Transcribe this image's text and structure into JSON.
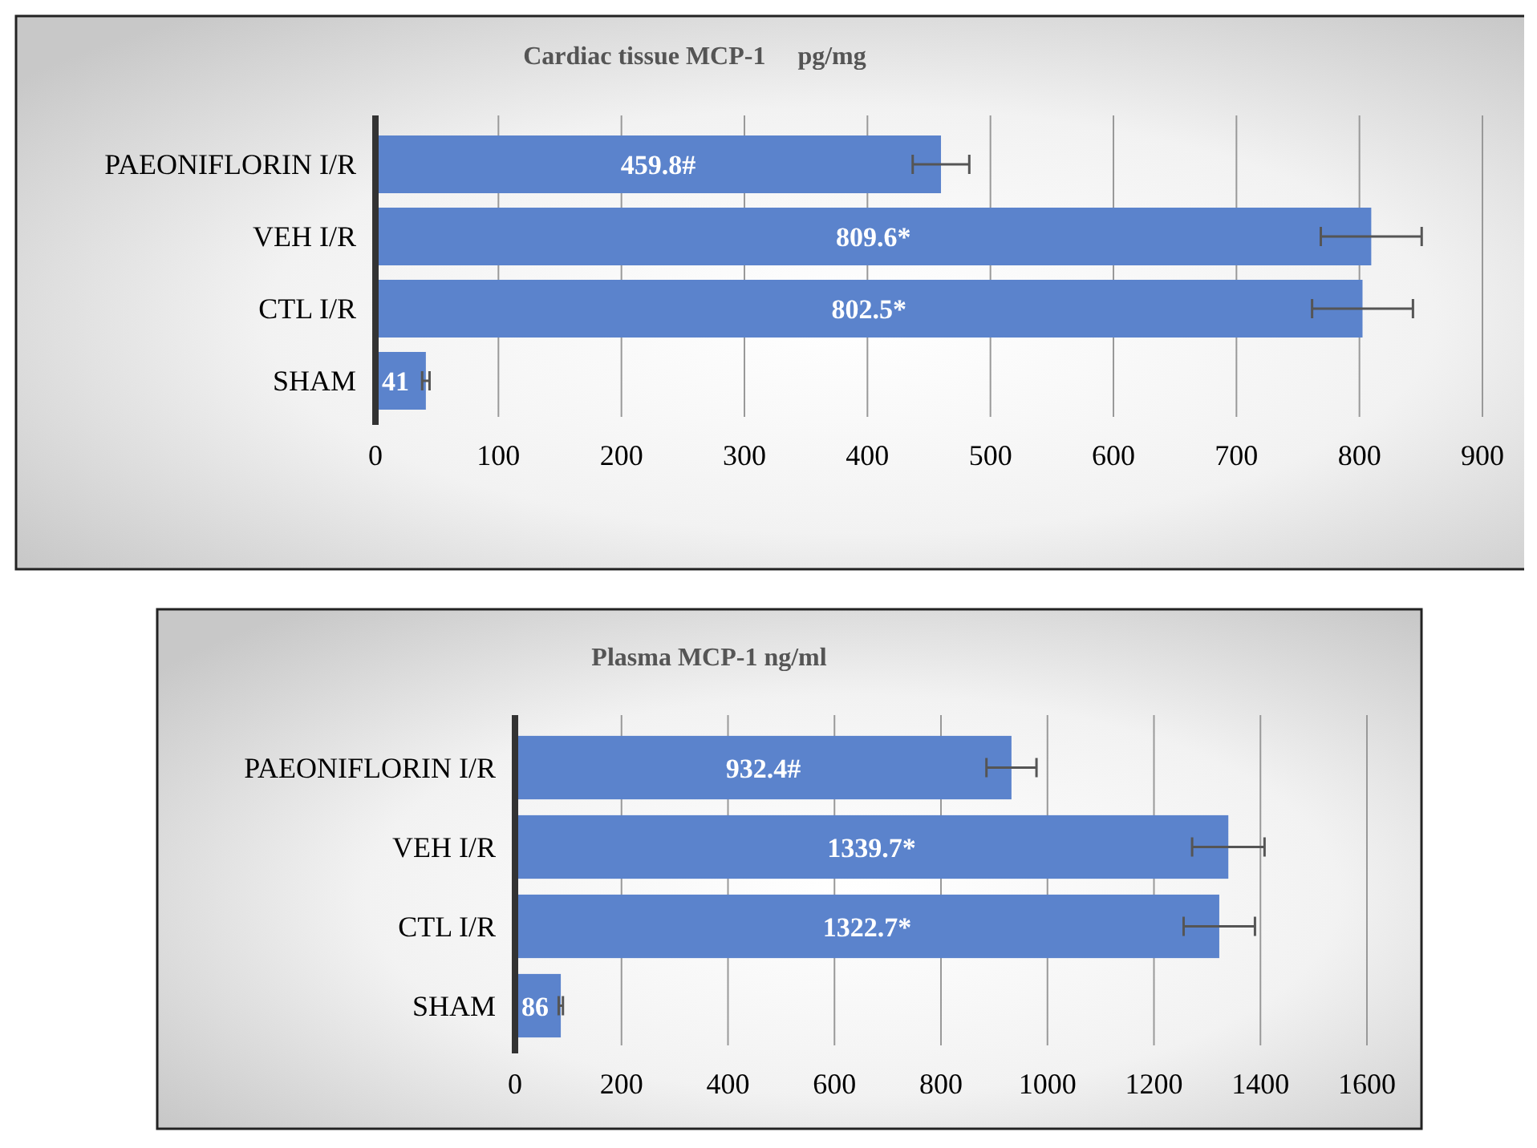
{
  "chart_data": [
    {
      "type": "bar",
      "orientation": "horizontal",
      "title": "Cardiac tissue MCP-1     pg/mg",
      "categories": [
        "PAEONIFLORIN I/R",
        "VEH I/R",
        "CTL I/R",
        "SHAM"
      ],
      "values": [
        459.8,
        809.6,
        802.5,
        41
      ],
      "errors": [
        23,
        41,
        41,
        3
      ],
      "value_labels": [
        "459.8#",
        "809.6*",
        "802.5*",
        "41"
      ],
      "color": "#5b83cc",
      "xlim": [
        0,
        900
      ],
      "xticks": [
        0,
        100,
        200,
        300,
        400,
        500,
        600,
        700,
        800,
        900
      ],
      "grid": "x"
    },
    {
      "type": "bar",
      "orientation": "horizontal",
      "title": "Plasma MCP-1 ng/ml",
      "categories": [
        "PAEONIFLORIN I/R",
        "VEH I/R",
        "CTL I/R",
        "SHAM"
      ],
      "values": [
        932.4,
        1339.7,
        1322.7,
        86
      ],
      "errors": [
        47,
        68,
        67,
        4
      ],
      "value_labels": [
        "932.4#",
        "1339.7*",
        "1322.7*",
        "86"
      ],
      "color": "#5b83cc",
      "xlim": [
        0,
        1600
      ],
      "xticks": [
        0,
        200,
        400,
        600,
        800,
        1000,
        1200,
        1400,
        1600
      ],
      "grid": "x"
    }
  ]
}
